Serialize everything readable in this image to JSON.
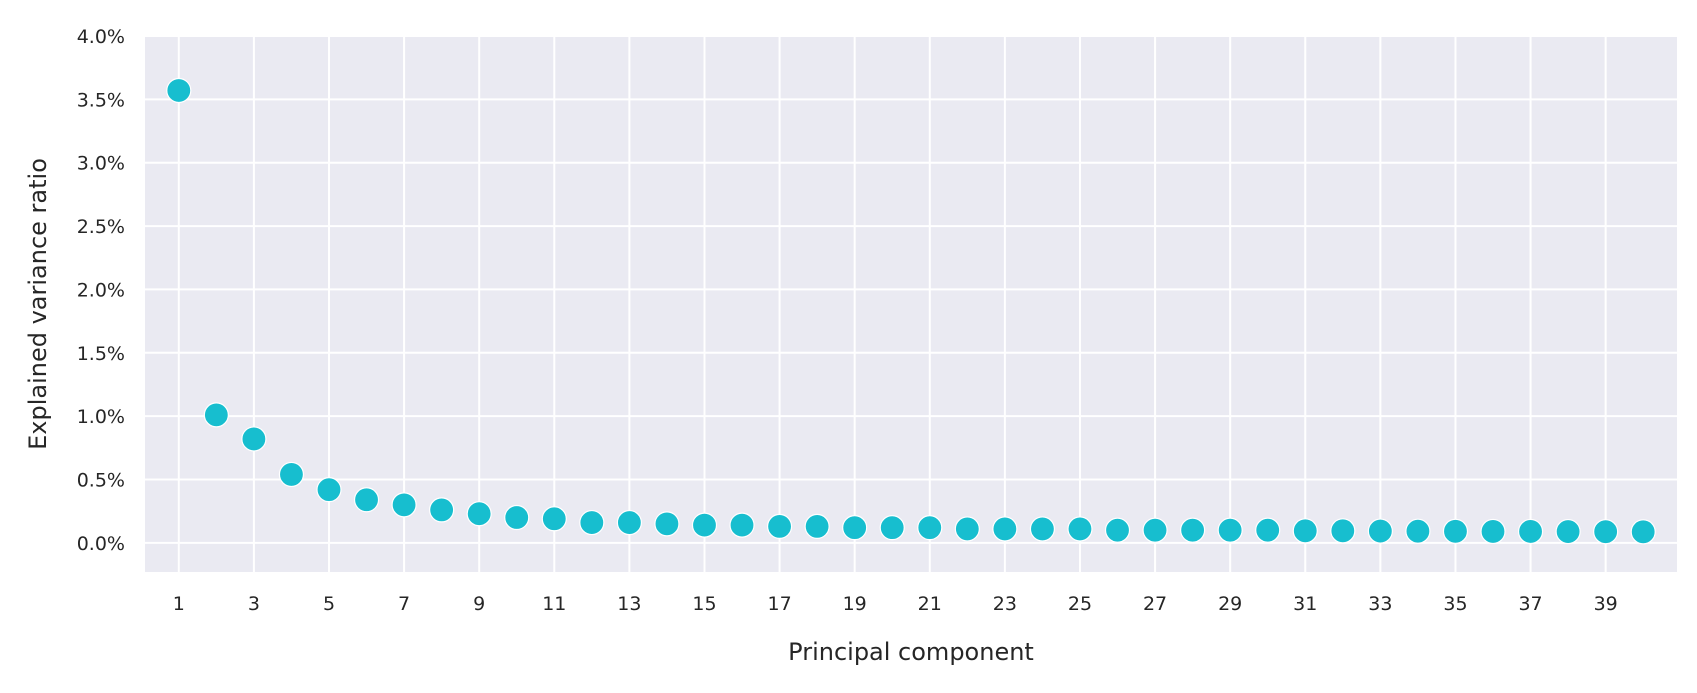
{
  "chart_data": {
    "type": "scatter",
    "title": "",
    "xlabel": "Principal component",
    "ylabel": "Explained variance ratio",
    "xlim": [
      0.1,
      40.9
    ],
    "ylim": [
      -0.0023,
      0.04
    ],
    "x_ticks": [
      1,
      3,
      5,
      7,
      9,
      11,
      13,
      15,
      17,
      19,
      21,
      23,
      25,
      27,
      29,
      31,
      33,
      35,
      37,
      39
    ],
    "x_tick_labels": [
      "1",
      "3",
      "5",
      "7",
      "9",
      "11",
      "13",
      "15",
      "17",
      "19",
      "21",
      "23",
      "25",
      "27",
      "29",
      "31",
      "33",
      "35",
      "37",
      "39"
    ],
    "y_ticks": [
      0.0,
      0.005,
      0.01,
      0.015,
      0.02,
      0.025,
      0.03,
      0.035,
      0.04
    ],
    "y_tick_labels": [
      "0.0%",
      "0.5%",
      "1.0%",
      "1.5%",
      "2.0%",
      "2.5%",
      "3.0%",
      "3.5%",
      "4.0%"
    ],
    "grid": true,
    "background_color": "#eaeaf2",
    "grid_color": "#ffffff",
    "point_color": "#17becf",
    "x": [
      1,
      2,
      3,
      4,
      5,
      6,
      7,
      8,
      9,
      10,
      11,
      12,
      13,
      14,
      15,
      16,
      17,
      18,
      19,
      20,
      21,
      22,
      23,
      24,
      25,
      26,
      27,
      28,
      29,
      30,
      31,
      32,
      33,
      34,
      35,
      36,
      37,
      38,
      39,
      40
    ],
    "values": [
      0.0357,
      0.0101,
      0.0082,
      0.0054,
      0.0042,
      0.0034,
      0.003,
      0.0026,
      0.0023,
      0.002,
      0.0019,
      0.0016,
      0.0016,
      0.0015,
      0.0014,
      0.0014,
      0.0013,
      0.0013,
      0.0012,
      0.0012,
      0.0012,
      0.0011,
      0.0011,
      0.0011,
      0.0011,
      0.001,
      0.001,
      0.001,
      0.001,
      0.001,
      0.00095,
      0.00095,
      0.00093,
      0.00092,
      0.00091,
      0.0009,
      0.0009,
      0.00089,
      0.00088,
      0.00087
    ]
  }
}
